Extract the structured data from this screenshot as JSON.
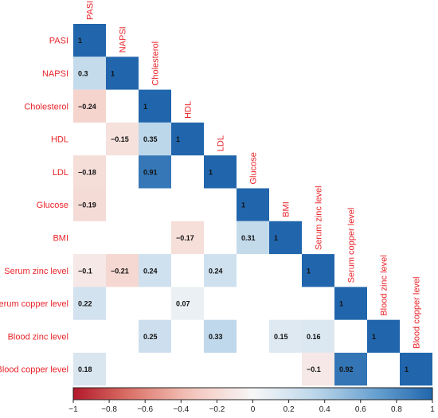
{
  "chart_data": {
    "type": "heatmap",
    "title": "",
    "variables": [
      "PASI",
      "NAPSI",
      "Cholesterol",
      "HDL",
      "LDL",
      "Glucose",
      "BMI",
      "Serum zinc level",
      "Serum copper level",
      "Blood zinc level",
      "Blood copper level"
    ],
    "cells": [
      {
        "row": 0,
        "col": 0,
        "value": 1,
        "label": "1"
      },
      {
        "row": 1,
        "col": 0,
        "value": 0.3,
        "label": "0.3"
      },
      {
        "row": 1,
        "col": 1,
        "value": 1,
        "label": "1"
      },
      {
        "row": 2,
        "col": 0,
        "value": -0.24,
        "label": "−0.24"
      },
      {
        "row": 2,
        "col": 2,
        "value": 1,
        "label": "1"
      },
      {
        "row": 3,
        "col": 1,
        "value": -0.15,
        "label": "−0.15"
      },
      {
        "row": 3,
        "col": 2,
        "value": 0.35,
        "label": "0.35"
      },
      {
        "row": 3,
        "col": 3,
        "value": 1,
        "label": "1"
      },
      {
        "row": 4,
        "col": 0,
        "value": -0.18,
        "label": "−0.18"
      },
      {
        "row": 4,
        "col": 2,
        "value": 0.91,
        "label": "0.91"
      },
      {
        "row": 4,
        "col": 4,
        "value": 1,
        "label": "1"
      },
      {
        "row": 5,
        "col": 0,
        "value": -0.19,
        "label": "−0.19"
      },
      {
        "row": 5,
        "col": 5,
        "value": 1,
        "label": "1"
      },
      {
        "row": 6,
        "col": 3,
        "value": -0.17,
        "label": "−0.17"
      },
      {
        "row": 6,
        "col": 5,
        "value": 0.31,
        "label": "0.31"
      },
      {
        "row": 6,
        "col": 6,
        "value": 1,
        "label": "1"
      },
      {
        "row": 7,
        "col": 0,
        "value": -0.1,
        "label": "−0.1"
      },
      {
        "row": 7,
        "col": 1,
        "value": -0.21,
        "label": "−0.21"
      },
      {
        "row": 7,
        "col": 2,
        "value": 0.24,
        "label": "0.24"
      },
      {
        "row": 7,
        "col": 4,
        "value": 0.24,
        "label": "0.24"
      },
      {
        "row": 7,
        "col": 7,
        "value": 1,
        "label": "1"
      },
      {
        "row": 8,
        "col": 0,
        "value": 0.22,
        "label": "0.22"
      },
      {
        "row": 8,
        "col": 3,
        "value": 0.07,
        "label": "0.07"
      },
      {
        "row": 8,
        "col": 8,
        "value": 1,
        "label": "1"
      },
      {
        "row": 9,
        "col": 2,
        "value": 0.25,
        "label": "0.25"
      },
      {
        "row": 9,
        "col": 4,
        "value": 0.33,
        "label": "0.33"
      },
      {
        "row": 9,
        "col": 6,
        "value": 0.15,
        "label": "0.15"
      },
      {
        "row": 9,
        "col": 7,
        "value": 0.16,
        "label": "0.16"
      },
      {
        "row": 9,
        "col": 9,
        "value": 1,
        "label": "1"
      },
      {
        "row": 10,
        "col": 0,
        "value": 0.18,
        "label": "0.18"
      },
      {
        "row": 10,
        "col": 7,
        "value": -0.1,
        "label": "−0.1"
      },
      {
        "row": 10,
        "col": 8,
        "value": 0.92,
        "label": "0.92"
      },
      {
        "row": 10,
        "col": 10,
        "value": 1,
        "label": "1"
      }
    ],
    "colorbar": {
      "range": [
        -1,
        1
      ],
      "ticks": [
        -1,
        -0.8,
        -0.6,
        -0.4,
        -0.2,
        0,
        0.2,
        0.4,
        0.6,
        0.8,
        1
      ],
      "tick_labels": [
        "−1",
        "−0.8",
        "−0.6",
        "−0.4",
        "−0.2",
        "0",
        "0.2",
        "0.4",
        "0.6",
        "0.8",
        "1"
      ],
      "colors": {
        "negative": "#b2182b",
        "neutral": "#f7f7f7",
        "positive": "#2166ac"
      }
    },
    "label_color": "#e8242a",
    "legend": "bottom"
  }
}
